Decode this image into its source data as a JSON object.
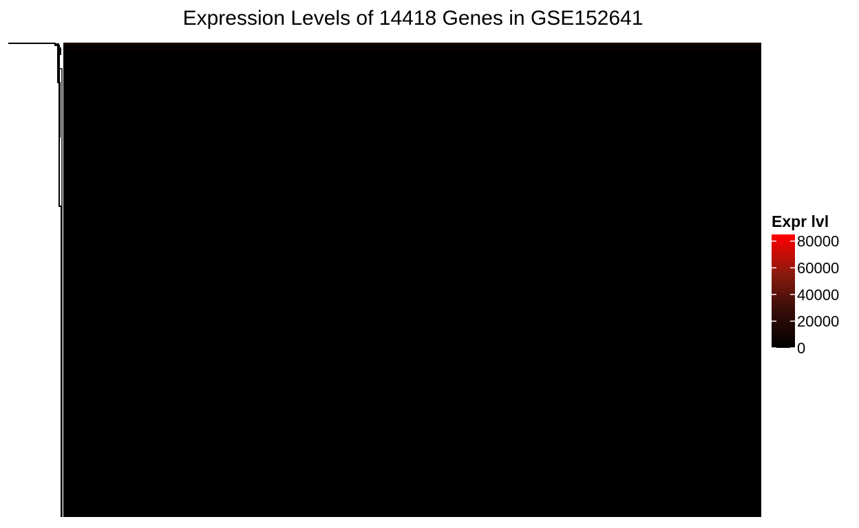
{
  "chart_data": {
    "type": "heatmap",
    "title": "Expression Levels of 14418 Genes in GSE152641",
    "xlabel": "",
    "ylabel": "",
    "n_genes": 14418,
    "dendrogram": "left",
    "value_summary": "nearly all cells at or near 0; a few high-expression genes at the top rows",
    "legend": {
      "title": "Expr lvl",
      "placement": "right",
      "range": [
        0,
        85000
      ],
      "ticks": [
        0,
        20000,
        40000,
        60000,
        80000
      ],
      "tick_labels": [
        "0",
        "20000",
        "40000",
        "60000",
        "80000"
      ],
      "colors": {
        "low": "#000000",
        "mid": "#5a1a10",
        "high": "#ff0000"
      }
    }
  }
}
